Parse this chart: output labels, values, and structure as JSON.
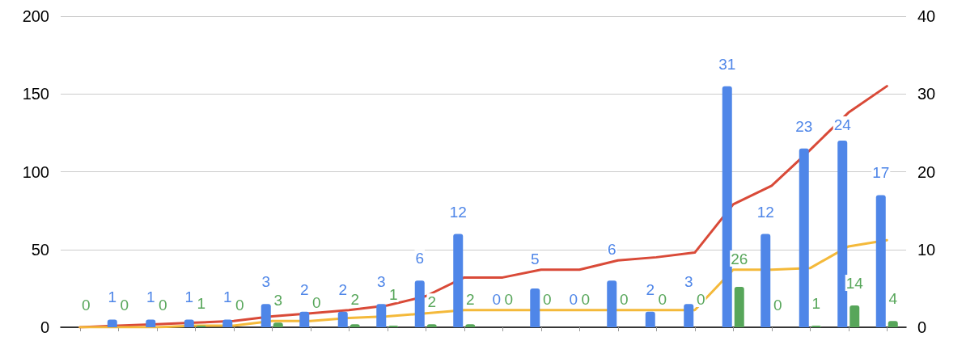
{
  "chart_data": {
    "type": "bar",
    "categories": [
      null,
      null,
      null,
      null,
      null,
      null,
      null,
      null,
      null,
      null,
      null,
      null,
      null,
      null,
      null,
      null,
      null,
      null,
      null,
      null,
      null,
      null
    ],
    "series": [
      {
        "type": "bar",
        "axis": "y2",
        "color": "#4f86e8",
        "values": [
          null,
          1,
          1,
          1,
          1,
          3,
          2,
          2,
          3,
          6,
          12,
          0,
          5,
          0,
          6,
          2,
          3,
          31,
          12,
          23,
          24,
          17
        ],
        "value_labels": [
          null,
          "1",
          "1",
          "1",
          "1",
          "3",
          "2",
          "2",
          "3",
          "6",
          "12",
          "0",
          "5",
          "0",
          "6",
          "2",
          "3",
          "31",
          "12",
          "23",
          "24",
          "17"
        ]
      },
      {
        "type": "bar",
        "color": "#57a65a",
        "values": [
          0,
          0,
          0,
          1,
          0,
          3,
          0,
          2,
          1,
          2,
          2,
          0,
          0,
          0,
          0,
          0,
          0,
          26,
          0,
          1,
          14,
          4
        ],
        "value_labels": [
          "0",
          "0",
          "0",
          "1",
          "0",
          "3",
          "0",
          "2",
          "1",
          "2",
          "2",
          "0",
          "0",
          "0",
          "0",
          "0",
          "0",
          "26",
          "0",
          "1",
          "14",
          "4"
        ]
      },
      {
        "type": "line",
        "color": "#d94a38",
        "values": [
          0,
          1,
          2,
          3,
          4,
          7,
          9,
          11,
          14,
          20,
          32,
          32,
          37,
          37,
          43,
          45,
          48,
          79,
          91,
          114,
          138,
          155
        ]
      },
      {
        "type": "line",
        "color": "#f4b93a",
        "values": [
          0,
          0,
          0,
          1,
          1,
          4,
          4,
          6,
          7,
          9,
          11,
          11,
          11,
          11,
          11,
          11,
          11,
          37,
          37,
          38,
          52,
          56
        ]
      }
    ],
    "ylim": [
      0,
      200
    ],
    "yticks": [
      0,
      50,
      100,
      150,
      200
    ],
    "y2lim": [
      0,
      40
    ],
    "y2ticks": [
      0,
      10,
      20,
      30,
      40
    ],
    "grid": "y",
    "marker": "none",
    "line_style": "solid"
  }
}
